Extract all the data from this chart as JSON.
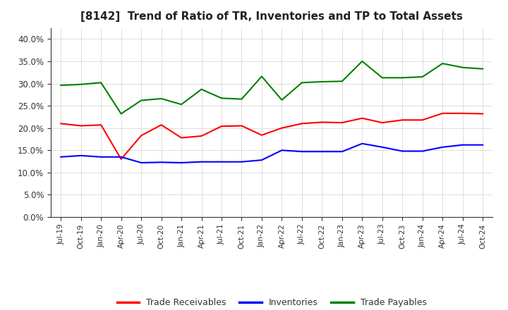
{
  "title": "[8142]  Trend of Ratio of TR, Inventories and TP to Total Assets",
  "x_labels": [
    "Jul-19",
    "Oct-19",
    "Jan-20",
    "Apr-20",
    "Jul-20",
    "Oct-20",
    "Jan-21",
    "Apr-21",
    "Jul-21",
    "Oct-21",
    "Jan-22",
    "Apr-22",
    "Jul-22",
    "Oct-22",
    "Jan-23",
    "Apr-23",
    "Jul-23",
    "Oct-23",
    "Jan-24",
    "Apr-24",
    "Jul-24",
    "Oct-24"
  ],
  "trade_receivables": [
    0.21,
    0.205,
    0.207,
    0.13,
    0.183,
    0.207,
    0.178,
    0.182,
    0.204,
    0.205,
    0.184,
    0.2,
    0.21,
    0.213,
    0.212,
    0.222,
    0.212,
    0.218,
    0.218,
    0.233,
    0.233,
    0.232
  ],
  "inventories": [
    0.135,
    0.138,
    0.135,
    0.135,
    0.122,
    0.123,
    0.122,
    0.124,
    0.124,
    0.124,
    0.128,
    0.15,
    0.147,
    0.147,
    0.147,
    0.165,
    0.157,
    0.148,
    0.148,
    0.157,
    0.162,
    0.162
  ],
  "trade_payables": [
    0.296,
    0.298,
    0.302,
    0.232,
    0.262,
    0.266,
    0.253,
    0.287,
    0.267,
    0.265,
    0.316,
    0.263,
    0.302,
    0.304,
    0.305,
    0.35,
    0.313,
    0.313,
    0.315,
    0.345,
    0.336,
    0.333
  ],
  "tr_color": "#ff0000",
  "inv_color": "#0000ff",
  "tp_color": "#008000",
  "ylim": [
    0.0,
    0.425
  ],
  "yticks": [
    0.0,
    0.05,
    0.1,
    0.15,
    0.2,
    0.25,
    0.3,
    0.35,
    0.4
  ],
  "background_color": "#ffffff",
  "plot_bg_color": "#ffffff",
  "grid_color": "#999999",
  "legend_labels": [
    "Trade Receivables",
    "Inventories",
    "Trade Payables"
  ]
}
